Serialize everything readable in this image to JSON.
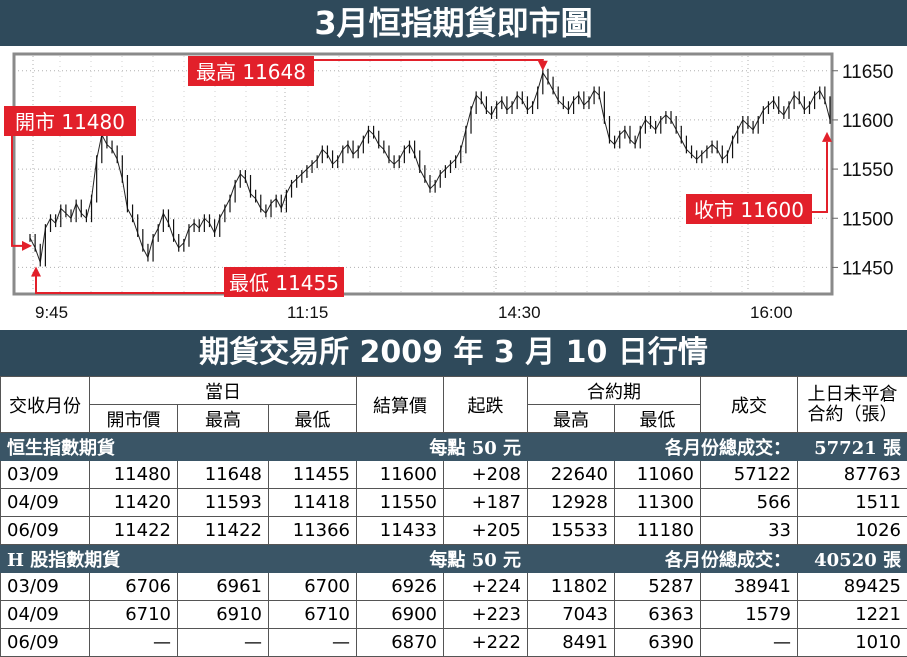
{
  "title": "3月恒指期貨即市圖",
  "subtitle": "期貨交易所 2009 年 3 月 10 日行情",
  "chart_data": {
    "type": "line",
    "ylim": [
      11425,
      11665
    ],
    "yticks": [
      11450,
      11500,
      11550,
      11600,
      11650
    ],
    "xticks": [
      "9:45",
      "11:15",
      "14:30",
      "16:00"
    ],
    "annotations": {
      "open": "開市 11480",
      "high": "最高 11648",
      "low": "最低 11455",
      "close": "收市 11600"
    },
    "series": [
      {
        "values": [
          11480,
          11470,
          11455,
          11490,
          11500,
          11495,
          11510,
          11505,
          11500,
          11515,
          11505,
          11500,
          11520,
          11560,
          11585,
          11575,
          11570,
          11560,
          11540,
          11510,
          11500,
          11485,
          11470,
          11460,
          11480,
          11490,
          11505,
          11495,
          11480,
          11470,
          11475,
          11490,
          11495,
          11490,
          11500,
          11495,
          11485,
          11500,
          11510,
          11520,
          11535,
          11545,
          11540,
          11525,
          11520,
          11510,
          11505,
          11515,
          11520,
          11510,
          11525,
          11535,
          11540,
          11545,
          11550,
          11555,
          11560,
          11570,
          11565,
          11555,
          11560,
          11570,
          11575,
          11565,
          11570,
          11580,
          11590,
          11585,
          11575,
          11570,
          11560,
          11555,
          11560,
          11570,
          11575,
          11565,
          11550,
          11540,
          11530,
          11535,
          11545,
          11550,
          11555,
          11560,
          11570,
          11590,
          11610,
          11625,
          11620,
          11610,
          11605,
          11615,
          11620,
          11610,
          11615,
          11625,
          11620,
          11610,
          11615,
          11630,
          11648,
          11640,
          11630,
          11620,
          11615,
          11610,
          11620,
          11625,
          11615,
          11620,
          11630,
          11625,
          11600,
          11580,
          11575,
          11585,
          11590,
          11580,
          11575,
          11590,
          11600,
          11595,
          11590,
          11600,
          11605,
          11600,
          11590,
          11580,
          11570,
          11565,
          11560,
          11565,
          11570,
          11575,
          11570,
          11560,
          11565,
          11580,
          11590,
          11600,
          11595,
          11590,
          11600,
          11610,
          11615,
          11620,
          11610,
          11605,
          11615,
          11625,
          11620,
          11610,
          11615,
          11625,
          11630,
          11620,
          11600
        ]
      }
    ]
  },
  "table": {
    "headers": {
      "month": "交收月份",
      "day": "當日",
      "open": "開市價",
      "high": "最高",
      "low": "最低",
      "settle": "結算價",
      "change": "起跌",
      "contract": "合約期",
      "c_high": "最高",
      "c_low": "最低",
      "volume": "成交",
      "oi_line1": "上日未平倉",
      "oi_line2": "合約（張）"
    },
    "sections": [
      {
        "name": "恒生指數期貨",
        "unit": "每點 50 元",
        "total_label": "各月份總成交：",
        "total": "57721 張",
        "rows": [
          [
            "03/09",
            "11480",
            "11648",
            "11455",
            "11600",
            "+208",
            "22640",
            "11060",
            "57122",
            "87763"
          ],
          [
            "04/09",
            "11420",
            "11593",
            "11418",
            "11550",
            "+187",
            "12928",
            "11300",
            "566",
            "1511"
          ],
          [
            "06/09",
            "11422",
            "11422",
            "11366",
            "11433",
            "+205",
            "15533",
            "11180",
            "33",
            "1026"
          ]
        ]
      },
      {
        "name": "H 股指數期貨",
        "unit": "每點 50 元",
        "total_label": "各月份總成交：",
        "total": "40520 張",
        "rows": [
          [
            "03/09",
            "6706",
            "6961",
            "6700",
            "6926",
            "+224",
            "11802",
            "5287",
            "38941",
            "89425"
          ],
          [
            "04/09",
            "6710",
            "6910",
            "6710",
            "6900",
            "+223",
            "7043",
            "6363",
            "1579",
            "1221"
          ],
          [
            "06/09",
            "—",
            "—",
            "—",
            "6870",
            "+222",
            "8491",
            "6390",
            "—",
            "1010"
          ]
        ]
      }
    ]
  }
}
